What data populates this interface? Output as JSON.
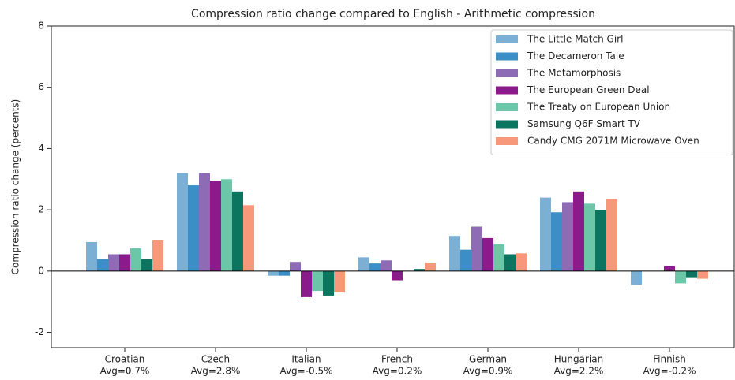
{
  "chart_data": {
    "type": "bar",
    "title": "Compression ratio change compared to English - Arithmetic compression",
    "y_label": "Compression ratio change (percents)",
    "categories": [
      "Croatian",
      "Czech",
      "Italian",
      "French",
      "German",
      "Hungarian",
      "Finnish"
    ],
    "category_notes": [
      "Avg=0.7%",
      "Avg=2.8%",
      "Avg=-0.5%",
      "Avg=0.2%",
      "Avg=0.9%",
      "Avg=2.2%",
      "Avg=-0.2%"
    ],
    "series": [
      {
        "name": "The Little Match Girl",
        "color": "#7bafd4",
        "values": [
          0.95,
          3.2,
          -0.15,
          0.45,
          1.15,
          2.4,
          -0.45
        ]
      },
      {
        "name": "The Decameron Tale",
        "color": "#3b8fc6",
        "values": [
          0.4,
          2.8,
          -0.15,
          0.25,
          0.7,
          1.92,
          0
        ]
      },
      {
        "name": "The Metamorphosis",
        "color": "#8e6bb5",
        "values": [
          0.55,
          3.2,
          0.3,
          0.35,
          1.45,
          2.25,
          0
        ]
      },
      {
        "name": "The European Green Deal",
        "color": "#8b1a8b",
        "values": [
          0.55,
          2.95,
          -0.85,
          -0.3,
          1.08,
          2.6,
          0.15
        ]
      },
      {
        "name": "The Treaty on European Union",
        "color": "#6cc7a8",
        "values": [
          0.75,
          3.0,
          -0.65,
          0,
          0.88,
          2.2,
          -0.4
        ]
      },
      {
        "name": "Samsung Q6F Smart TV",
        "color": "#0c7560",
        "values": [
          0.4,
          2.6,
          -0.8,
          0.07,
          0.55,
          2.0,
          -0.2
        ]
      },
      {
        "name": "Candy CMG 2071M Microwave Oven",
        "color": "#f7987a",
        "values": [
          1.0,
          2.15,
          -0.7,
          0.28,
          0.58,
          2.35,
          -0.25
        ]
      }
    ],
    "ylim": [
      -2.5,
      8
    ],
    "yticks": [
      -2,
      0,
      2,
      4,
      6,
      8
    ],
    "grid": false,
    "legend": "upper right"
  }
}
